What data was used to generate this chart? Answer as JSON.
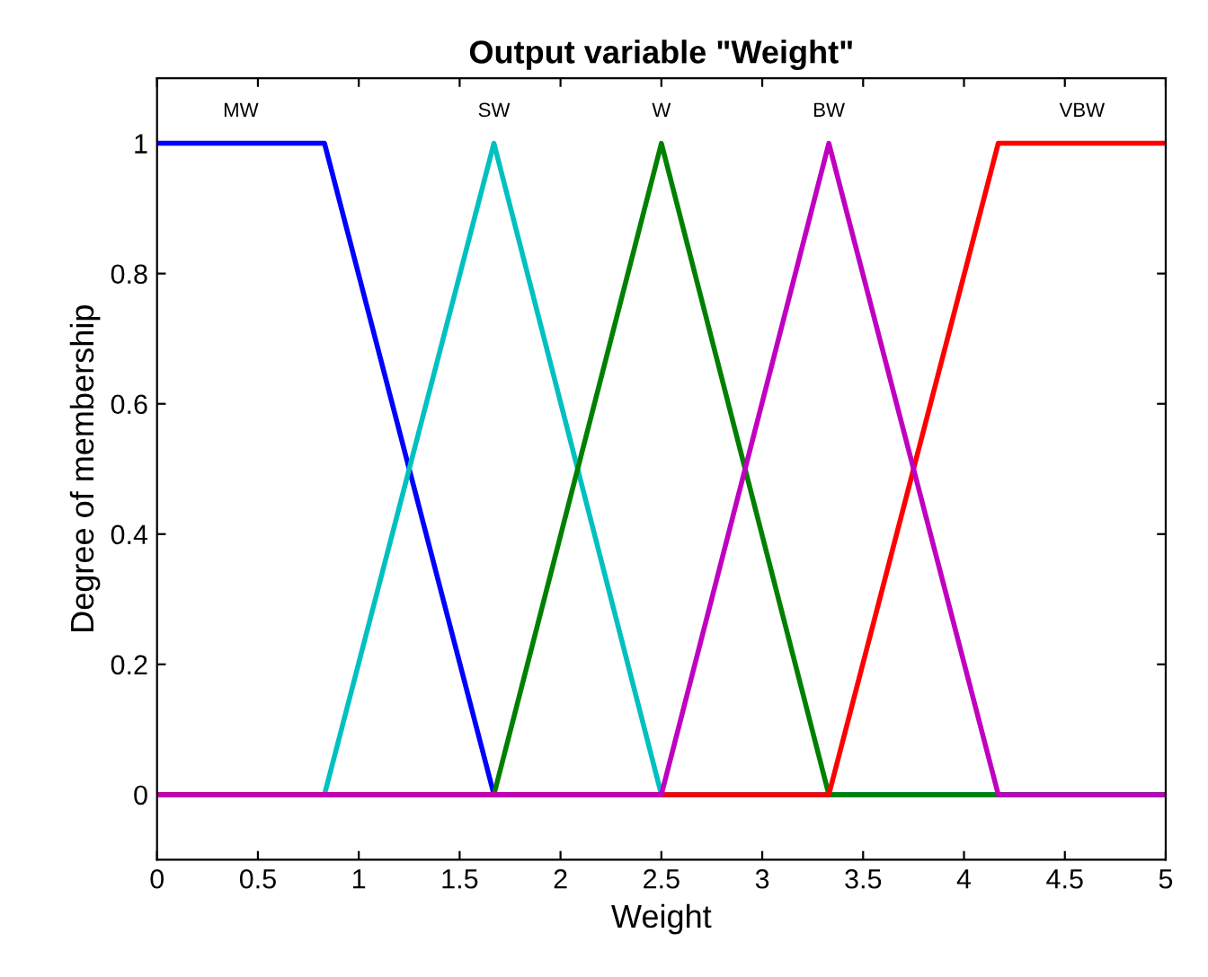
{
  "chart_data": {
    "type": "line",
    "title": "Output variable \"Weight\"",
    "xlabel": "Weight",
    "ylabel": "Degree of membership",
    "series": [
      {
        "name": "MW",
        "color": "#0000ff",
        "x": [
          0,
          0.83,
          1.67,
          5
        ],
        "values": [
          1,
          1,
          0,
          0
        ]
      },
      {
        "name": "SW",
        "color": "#00c0c0",
        "x": [
          0,
          0.83,
          1.67,
          2.5,
          5
        ],
        "values": [
          0,
          0,
          1,
          0,
          0
        ]
      },
      {
        "name": "W",
        "color": "#008000",
        "x": [
          0,
          1.67,
          2.5,
          3.33,
          5
        ],
        "values": [
          0,
          0,
          1,
          0,
          0
        ]
      },
      {
        "name": "VBW",
        "color": "#ff0000",
        "x": [
          0,
          3.33,
          4.17,
          5
        ],
        "values": [
          0,
          0,
          1,
          1
        ]
      },
      {
        "name": "BW",
        "color": "#c000c0",
        "x": [
          0,
          2.5,
          3.33,
          4.17,
          5
        ],
        "values": [
          0,
          0,
          1,
          0,
          0
        ]
      }
    ],
    "xlim": [
      0,
      5
    ],
    "xticks": [
      0,
      0.5,
      1,
      1.5,
      2,
      2.5,
      3,
      3.5,
      4,
      4.5,
      5
    ],
    "ylim": [
      -0.1,
      1.1
    ],
    "yticks": [
      0,
      0.2,
      0.4,
      0.6,
      0.8,
      1
    ],
    "grid": false,
    "legend": false,
    "marker": "none",
    "line_style": "solid"
  }
}
